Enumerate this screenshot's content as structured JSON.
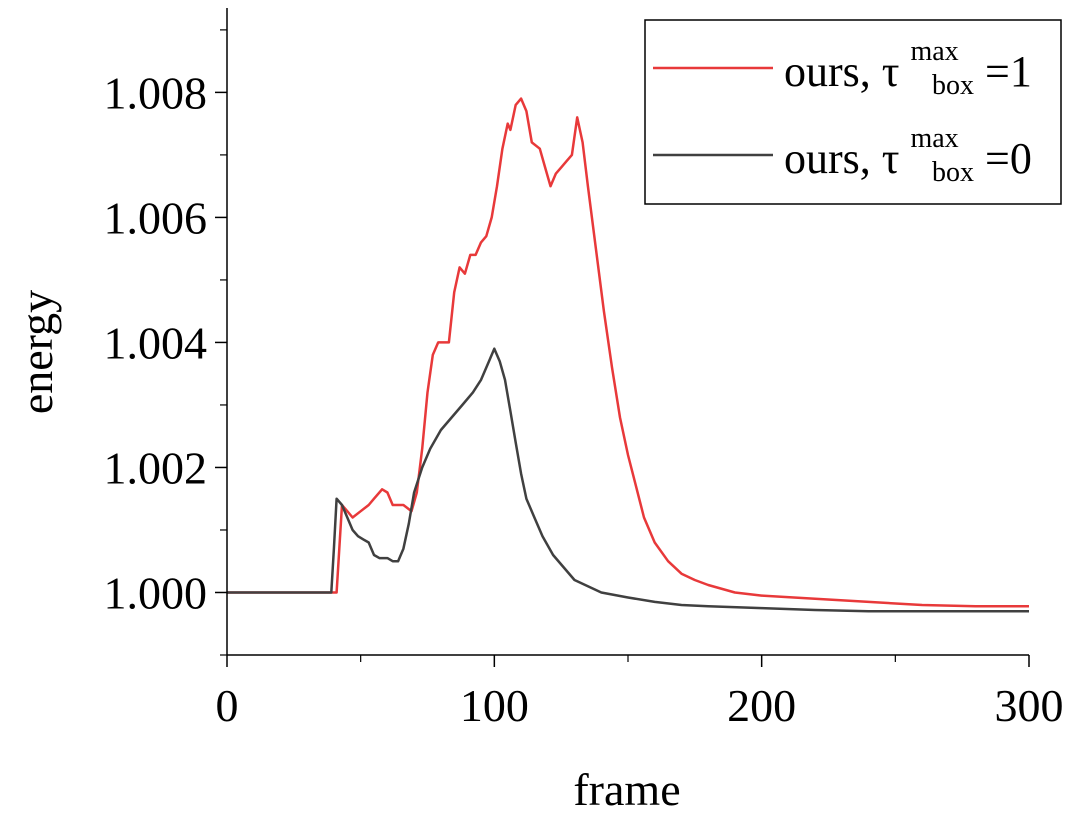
{
  "chart_data": {
    "type": "line",
    "xlabel": "frame",
    "ylabel": "energy",
    "xlim": [
      0,
      300
    ],
    "ylim": [
      0.999,
      1.00935
    ],
    "xticks": [
      0,
      100,
      200,
      300
    ],
    "xtick_labels": [
      "0",
      "100",
      "200",
      "300"
    ],
    "yticks": [
      1.0,
      1.002,
      1.004,
      1.006,
      1.008
    ],
    "ytick_labels": [
      "1.000",
      "1.002",
      "1.004",
      "1.006",
      "1.008"
    ],
    "grid": false,
    "legend_position": "top-right",
    "series": [
      {
        "name": "ours, τ_box^max=1",
        "legend": {
          "prefix": "ours, τ",
          "sup": "max",
          "sub": "box",
          "suffix": "=1"
        },
        "color": "#e8393a",
        "points": [
          [
            0,
            1.0
          ],
          [
            40,
            1.0
          ],
          [
            41,
            1.0
          ],
          [
            42,
            1.0007
          ],
          [
            43,
            1.0014
          ],
          [
            45,
            1.0013
          ],
          [
            47,
            1.0012
          ],
          [
            50,
            1.0013
          ],
          [
            53,
            1.0014
          ],
          [
            55,
            1.0015
          ],
          [
            58,
            1.00165
          ],
          [
            60,
            1.0016
          ],
          [
            62,
            1.0014
          ],
          [
            66,
            1.0014
          ],
          [
            69,
            1.0013
          ],
          [
            71,
            1.0016
          ],
          [
            73,
            1.0023
          ],
          [
            75,
            1.0032
          ],
          [
            77,
            1.0038
          ],
          [
            79,
            1.004
          ],
          [
            83,
            1.004
          ],
          [
            85,
            1.0048
          ],
          [
            87,
            1.0052
          ],
          [
            89,
            1.0051
          ],
          [
            91,
            1.0054
          ],
          [
            93,
            1.0054
          ],
          [
            95,
            1.0056
          ],
          [
            97,
            1.0057
          ],
          [
            99,
            1.006
          ],
          [
            101,
            1.0065
          ],
          [
            103,
            1.0071
          ],
          [
            105,
            1.0075
          ],
          [
            106,
            1.0074
          ],
          [
            108,
            1.0078
          ],
          [
            110,
            1.0079
          ],
          [
            112,
            1.0077
          ],
          [
            114,
            1.0072
          ],
          [
            117,
            1.0071
          ],
          [
            119,
            1.0068
          ],
          [
            121,
            1.0065
          ],
          [
            123,
            1.0067
          ],
          [
            125,
            1.0068
          ],
          [
            127,
            1.0069
          ],
          [
            129,
            1.007
          ],
          [
            131,
            1.0076
          ],
          [
            133,
            1.0072
          ],
          [
            135,
            1.0065
          ],
          [
            138,
            1.0055
          ],
          [
            141,
            1.0045
          ],
          [
            144,
            1.0036
          ],
          [
            147,
            1.0028
          ],
          [
            150,
            1.0022
          ],
          [
            153,
            1.0017
          ],
          [
            156,
            1.0012
          ],
          [
            160,
            1.0008
          ],
          [
            165,
            1.0005
          ],
          [
            170,
            1.0003
          ],
          [
            175,
            1.0002
          ],
          [
            180,
            1.00012
          ],
          [
            190,
            1.0
          ],
          [
            200,
            0.99995
          ],
          [
            220,
            0.9999
          ],
          [
            240,
            0.99985
          ],
          [
            260,
            0.9998
          ],
          [
            280,
            0.99978
          ],
          [
            300,
            0.99978
          ]
        ]
      },
      {
        "name": "ours, τ_box^max=0",
        "legend": {
          "prefix": "ours, τ",
          "sup": "max",
          "sub": "box",
          "suffix": "=0"
        },
        "color": "#404040",
        "points": [
          [
            0,
            1.0
          ],
          [
            38,
            1.0
          ],
          [
            39,
            1.0
          ],
          [
            40,
            1.0007
          ],
          [
            41,
            1.0015
          ],
          [
            43,
            1.0014
          ],
          [
            45,
            1.0012
          ],
          [
            47,
            1.001
          ],
          [
            49,
            1.0009
          ],
          [
            51,
            1.00085
          ],
          [
            53,
            1.0008
          ],
          [
            55,
            1.0006
          ],
          [
            57,
            1.00055
          ],
          [
            60,
            1.00055
          ],
          [
            62,
            1.0005
          ],
          [
            64,
            1.0005
          ],
          [
            66,
            1.0007
          ],
          [
            68,
            1.0011
          ],
          [
            70,
            1.0016
          ],
          [
            73,
            1.002
          ],
          [
            76,
            1.0023
          ],
          [
            80,
            1.0026
          ],
          [
            84,
            1.0028
          ],
          [
            88,
            1.003
          ],
          [
            92,
            1.0032
          ],
          [
            95,
            1.0034
          ],
          [
            98,
            1.0037
          ],
          [
            100,
            1.0039
          ],
          [
            102,
            1.0037
          ],
          [
            104,
            1.0034
          ],
          [
            106,
            1.0029
          ],
          [
            108,
            1.0024
          ],
          [
            110,
            1.0019
          ],
          [
            112,
            1.0015
          ],
          [
            115,
            1.0012
          ],
          [
            118,
            1.0009
          ],
          [
            122,
            1.0006
          ],
          [
            126,
            1.0004
          ],
          [
            130,
            1.0002
          ],
          [
            135,
            1.0001
          ],
          [
            140,
            1.0
          ],
          [
            150,
            0.99992
          ],
          [
            160,
            0.99985
          ],
          [
            170,
            0.9998
          ],
          [
            180,
            0.99978
          ],
          [
            200,
            0.99975
          ],
          [
            220,
            0.99972
          ],
          [
            240,
            0.9997
          ],
          [
            260,
            0.9997
          ],
          [
            280,
            0.9997
          ],
          [
            300,
            0.9997
          ]
        ]
      }
    ]
  }
}
